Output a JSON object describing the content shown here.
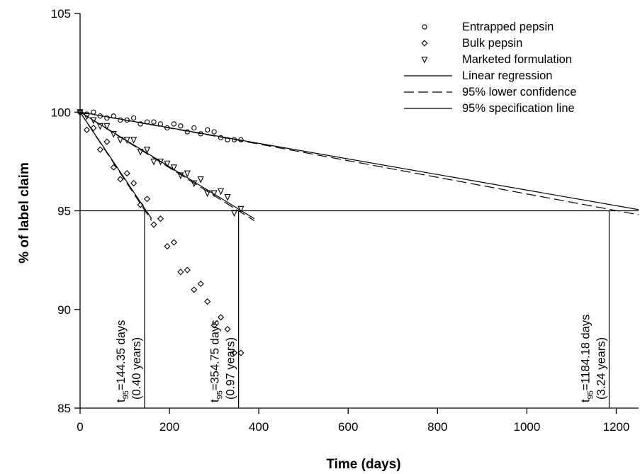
{
  "chart_data": {
    "type": "scatter",
    "xlabel": "Time (days)",
    "ylabel": "% of label claim",
    "xlim": [
      0,
      1250
    ],
    "ylim": [
      85,
      105
    ],
    "xticks": [
      0,
      200,
      400,
      600,
      800,
      1000,
      1200
    ],
    "yticks": [
      85,
      90,
      95,
      100,
      105
    ],
    "xtick_labels": [
      "0",
      "200",
      "400",
      "600",
      "800",
      "1000",
      "1200"
    ],
    "ytick_labels": [
      "85",
      "90",
      "95",
      "100",
      "105"
    ],
    "grid": false,
    "legend_position": "top-right",
    "series": [
      {
        "name": "Entrapped pepsin",
        "marker": "circle",
        "x": [
          0,
          15,
          30,
          45,
          60,
          75,
          90,
          105,
          120,
          135,
          150,
          165,
          180,
          195,
          210,
          225,
          240,
          255,
          270,
          285,
          300,
          315,
          330,
          345,
          360
        ],
        "y": [
          100.0,
          99.9,
          100.0,
          99.8,
          99.7,
          99.8,
          99.6,
          99.6,
          99.7,
          99.4,
          99.5,
          99.5,
          99.4,
          99.2,
          99.4,
          99.3,
          99.0,
          99.2,
          98.9,
          99.1,
          99.0,
          98.7,
          98.6,
          98.6,
          98.6
        ]
      },
      {
        "name": "Bulk pepsin",
        "marker": "diamond",
        "x": [
          0,
          15,
          30,
          45,
          60,
          75,
          90,
          105,
          120,
          135,
          150,
          165,
          180,
          195,
          210,
          225,
          240,
          255,
          270,
          285,
          300,
          315,
          330,
          345,
          360
        ],
        "y": [
          100.0,
          99.1,
          99.2,
          98.1,
          98.5,
          97.2,
          96.6,
          96.9,
          96.4,
          95.3,
          95.6,
          94.3,
          94.6,
          93.2,
          93.4,
          91.9,
          92.0,
          91.0,
          91.3,
          90.4,
          89.2,
          89.6,
          89.0,
          87.8,
          87.8
        ]
      },
      {
        "name": "Marketed formulation",
        "marker": "triangle-down",
        "x": [
          0,
          15,
          30,
          45,
          60,
          75,
          90,
          105,
          120,
          135,
          150,
          165,
          180,
          195,
          210,
          225,
          240,
          255,
          270,
          285,
          300,
          315,
          330,
          345,
          360
        ],
        "y": [
          100.0,
          99.8,
          99.6,
          99.3,
          99.3,
          98.9,
          98.6,
          98.6,
          98.6,
          98.0,
          98.1,
          97.5,
          97.5,
          97.4,
          97.2,
          96.8,
          96.9,
          96.4,
          96.6,
          95.9,
          95.9,
          96.0,
          95.7,
          94.9,
          95.1
        ]
      }
    ],
    "lines": [
      {
        "name": "Linear regression",
        "style": "solid",
        "series": "Entrapped pepsin",
        "x": [
          0,
          1250
        ],
        "y": [
          100.0,
          95.06
        ]
      },
      {
        "name": "95% lower confidence",
        "style": "dashed",
        "series": "Entrapped pepsin",
        "x": [
          0,
          360,
          1250
        ],
        "y": [
          100.0,
          98.55,
          94.8
        ]
      },
      {
        "name": "Linear regression",
        "style": "solid",
        "series": "Marketed formulation",
        "x": [
          0,
          390
        ],
        "y": [
          100.0,
          94.6
        ]
      },
      {
        "name": "95% lower confidence",
        "style": "dashed",
        "series": "Marketed formulation",
        "x": [
          0,
          390
        ],
        "y": [
          100.0,
          94.5
        ]
      },
      {
        "name": "Linear regression",
        "style": "solid",
        "series": "Bulk pepsin",
        "x": [
          0,
          160
        ],
        "y": [
          100.0,
          94.6
        ]
      },
      {
        "name": "95% lower confidence",
        "style": "dashed",
        "series": "Bulk pepsin",
        "x": [
          0,
          160
        ],
        "y": [
          100.0,
          94.5
        ]
      }
    ],
    "specification_line": {
      "name": "95% specification line",
      "y": 95,
      "x": [
        0,
        1250
      ]
    },
    "legend": [
      {
        "label": "Entrapped pepsin",
        "marker": "circle"
      },
      {
        "label": "Bulk pepsin",
        "marker": "diamond"
      },
      {
        "label": "Marketed formulation",
        "marker": "triangle-down"
      },
      {
        "label": "Linear regression",
        "line": "solid"
      },
      {
        "label": "95% lower confidence",
        "line": "dashed"
      },
      {
        "label": "95% specification line",
        "line": "solid"
      }
    ],
    "annotations": [
      {
        "x": 144.35,
        "prefix": "t",
        "subscript": "95",
        "value_text": "=144.35 days",
        "years_text": "(0.40 years)"
      },
      {
        "x": 354.75,
        "prefix": "t",
        "subscript": "95",
        "value_text": "=354.75 days",
        "years_text": "(0.97 years)"
      },
      {
        "x": 1184.18,
        "prefix": "t",
        "subscript": "95",
        "value_text": "=1184.18 days",
        "years_text": "(3.24 years)"
      }
    ]
  }
}
